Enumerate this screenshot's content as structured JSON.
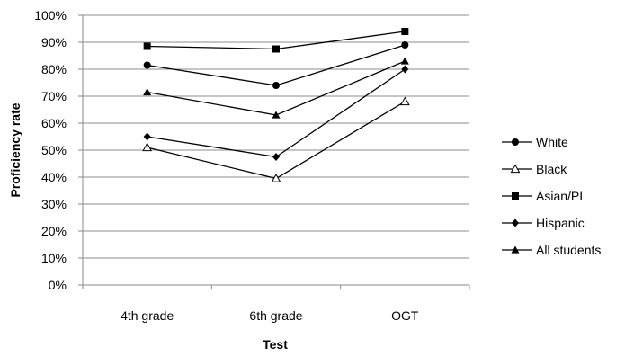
{
  "chart_data": {
    "type": "line",
    "title": "",
    "xlabel": "Test",
    "ylabel": "Proficiency rate",
    "categories": [
      "4th grade",
      "6th grade",
      "OGT"
    ],
    "ylim": [
      0,
      100
    ],
    "yticks": [
      0,
      10,
      20,
      30,
      40,
      50,
      60,
      70,
      80,
      90,
      100
    ],
    "ytick_labels": [
      "0%",
      "10%",
      "20%",
      "30%",
      "40%",
      "50%",
      "60%",
      "70%",
      "80%",
      "90%",
      "100%"
    ],
    "grid": true,
    "legend_position": "right",
    "series": [
      {
        "name": "White",
        "marker": "circle",
        "values": [
          81.5,
          74,
          89
        ]
      },
      {
        "name": "Black",
        "marker": "triangle-open",
        "values": [
          51,
          39.5,
          68
        ]
      },
      {
        "name": "Asian/PI",
        "marker": "square",
        "values": [
          88.5,
          87.5,
          94
        ]
      },
      {
        "name": "Hispanic",
        "marker": "diamond",
        "values": [
          55,
          47.5,
          80
        ]
      },
      {
        "name": "All students",
        "marker": "triangle",
        "values": [
          71.5,
          63,
          83
        ]
      }
    ]
  }
}
